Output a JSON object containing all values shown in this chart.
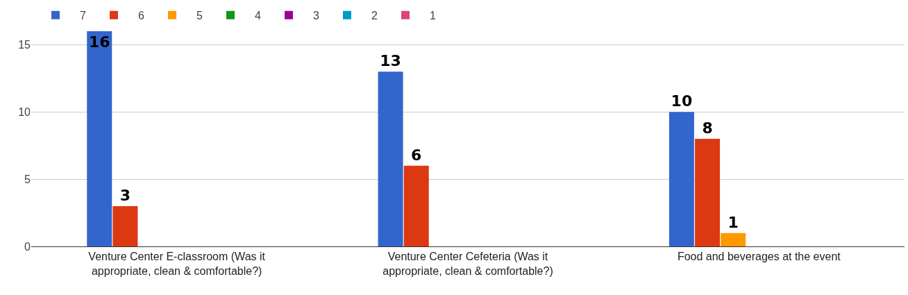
{
  "chart_data": {
    "type": "bar",
    "categories": [
      "Venture Center E-classroom (Was it appropriate, clean & comfortable?)",
      "Venture Center Cefeteria (Was it appropriate, clean & comfortable?)",
      "Food and beverages at the event"
    ],
    "series": [
      {
        "name": "7",
        "color": "#3366cc",
        "values": [
          16,
          13,
          10
        ],
        "value_labels": [
          "16",
          "13",
          "10"
        ]
      },
      {
        "name": "6",
        "color": "#dc3912",
        "values": [
          3,
          6,
          8
        ],
        "value_labels": [
          "3",
          "6",
          "8"
        ]
      },
      {
        "name": "5",
        "color": "#ff9900",
        "values": [
          0,
          0,
          1
        ],
        "value_labels": [
          null,
          null,
          "1"
        ]
      },
      {
        "name": "4",
        "color": "#109618",
        "values": [
          0,
          0,
          0
        ]
      },
      {
        "name": "3",
        "color": "#990099",
        "values": [
          0,
          0,
          0
        ]
      },
      {
        "name": "2",
        "color": "#0099c6",
        "values": [
          0,
          0,
          0
        ]
      },
      {
        "name": "1",
        "color": "#dd4477",
        "values": [
          0,
          0,
          0
        ]
      }
    ],
    "ylim": [
      0,
      16
    ],
    "yticks": [
      0,
      5,
      10,
      15
    ],
    "grid": "y",
    "legend": "top left"
  }
}
